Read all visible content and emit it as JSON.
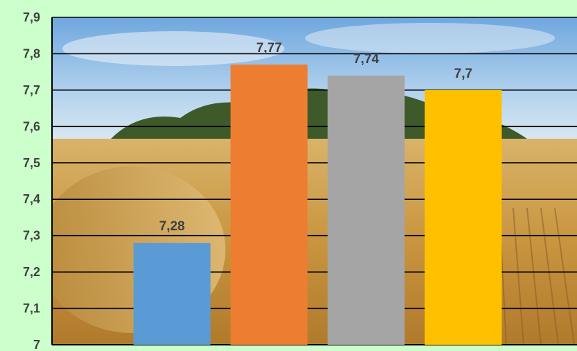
{
  "chart_data": {
    "type": "bar",
    "title": "",
    "xlabel": "",
    "ylabel": "",
    "categories": [
      "",
      "",
      "",
      ""
    ],
    "values": [
      7.28,
      7.77,
      7.74,
      7.7
    ],
    "value_labels": [
      "7,28",
      "7,77",
      "7,74",
      "7,7"
    ],
    "colors": [
      "#5b9bd5",
      "#ed7d31",
      "#a5a5a5",
      "#ffc000"
    ],
    "ylim": [
      7,
      7.9
    ],
    "yticks": [
      7,
      7.1,
      7.2,
      7.3,
      7.4,
      7.5,
      7.6,
      7.7,
      7.8,
      7.9
    ],
    "ytick_labels": [
      "7",
      "7,1",
      "7,2",
      "7,3",
      "7,4",
      "7,5",
      "7,6",
      "7,7",
      "7,8",
      "7,9"
    ],
    "grid": true,
    "legend": "none",
    "background": "wheat-field-photo"
  },
  "colors": {
    "page_background": "#ccffcc",
    "gridline": "#000000",
    "label_text": "#404040"
  }
}
